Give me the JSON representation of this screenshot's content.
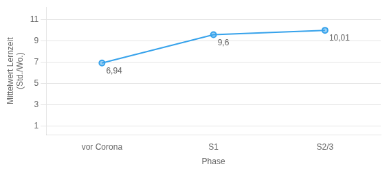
{
  "chart_data": {
    "type": "line",
    "categories": [
      "vor Corona",
      "S1",
      "S2/3"
    ],
    "values": [
      6.94,
      9.6,
      10.01
    ],
    "xlabel": "Phase",
    "ylabel": "Mittelwert Lernzeit\n(Std./Wo.)",
    "ylim": [
      0.2,
      12.2
    ],
    "yticks": [
      1,
      3,
      5,
      7,
      9,
      11
    ],
    "grid": "y",
    "marker": "circle",
    "annotations": [
      {
        "text": "6,94",
        "x": "vor Corona",
        "y": 6.94
      },
      {
        "text": "9,6",
        "x": "S1",
        "y": 9.6
      },
      {
        "text": "10,01",
        "x": "S2/3",
        "y": 10.01
      }
    ]
  }
}
